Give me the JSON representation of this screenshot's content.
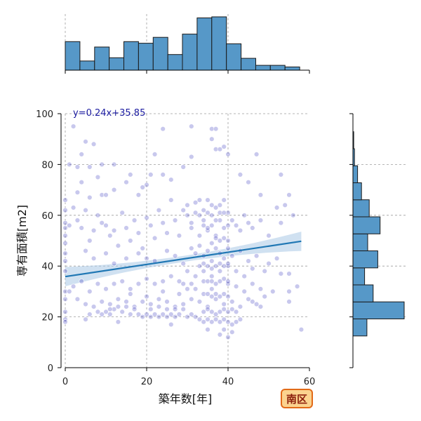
{
  "chart_data": {
    "type": "scatter",
    "xlabel": "築年数[年]",
    "ylabel": "専有面積[m2]",
    "xlim": [
      0,
      60
    ],
    "ylim": [
      0,
      100
    ],
    "xticks": [
      0,
      20,
      40,
      60
    ],
    "yticks": [
      0,
      20,
      40,
      60,
      80,
      100
    ],
    "grid": true,
    "regression": {
      "label": "y=0.24x+35.85",
      "slope": 0.24,
      "intercept": 35.85,
      "x_range": [
        0,
        58
      ],
      "line_color": "#1f77b4",
      "band_color": "#a9c8e6",
      "label_color": "#1a1aa0"
    },
    "point_color": "#2c2cb8",
    "marginal_x_hist": {
      "bin_edges": [
        0,
        3.6,
        7.2,
        10.8,
        14.4,
        18,
        21.6,
        25.2,
        28.8,
        32.4,
        36,
        39.6,
        43.2,
        46.8,
        50.4,
        54,
        57.6
      ],
      "counts": [
        53,
        17,
        43,
        23,
        53,
        50,
        61,
        29,
        67,
        97,
        99,
        49,
        22,
        9,
        9,
        6
      ]
    },
    "marginal_y_hist": {
      "bin_edges": [
        12.5,
        19.2,
        25.9,
        32.6,
        39.3,
        46,
        52.7,
        59.4,
        66.1,
        72.8,
        79.5,
        86.2,
        92.9,
        99.6
      ],
      "counts": [
        18,
        66,
        26,
        15,
        32,
        19,
        35,
        21,
        11,
        6,
        2,
        1,
        0
      ]
    },
    "scatter_points": [
      [
        2,
        95
      ],
      [
        4,
        84
      ],
      [
        5,
        89
      ],
      [
        7,
        88
      ],
      [
        6,
        79
      ],
      [
        3,
        79
      ],
      [
        1,
        80
      ],
      [
        9,
        80
      ],
      [
        8,
        75
      ],
      [
        12,
        80
      ],
      [
        4,
        73
      ],
      [
        3,
        69
      ],
      [
        6,
        67
      ],
      [
        9,
        68
      ],
      [
        10,
        68
      ],
      [
        12,
        70
      ],
      [
        15,
        73
      ],
      [
        16,
        76
      ],
      [
        18,
        68
      ],
      [
        19,
        71
      ],
      [
        20,
        72
      ],
      [
        21,
        76
      ],
      [
        22,
        84
      ],
      [
        24,
        94
      ],
      [
        24,
        76
      ],
      [
        26,
        74
      ],
      [
        29,
        79
      ],
      [
        31,
        83
      ],
      [
        31,
        95
      ],
      [
        36,
        94
      ],
      [
        37,
        94
      ],
      [
        36,
        90
      ],
      [
        37,
        86
      ],
      [
        38,
        86
      ],
      [
        39,
        87
      ],
      [
        40,
        84
      ],
      [
        47,
        84
      ],
      [
        53,
        76
      ],
      [
        55,
        68
      ],
      [
        54,
        64
      ],
      [
        43,
        76
      ],
      [
        45,
        73
      ],
      [
        48,
        68
      ],
      [
        0,
        66
      ],
      [
        0,
        62
      ],
      [
        0,
        57
      ],
      [
        0,
        55
      ],
      [
        0,
        52
      ],
      [
        1,
        56
      ],
      [
        0,
        49
      ],
      [
        0,
        45
      ],
      [
        0,
        42
      ],
      [
        0,
        38
      ],
      [
        0,
        30
      ],
      [
        0,
        27
      ],
      [
        0,
        22
      ],
      [
        0,
        19
      ],
      [
        0,
        18
      ],
      [
        2,
        63
      ],
      [
        3,
        58
      ],
      [
        4,
        55
      ],
      [
        5,
        62
      ],
      [
        6,
        50
      ],
      [
        7,
        54
      ],
      [
        8,
        60
      ],
      [
        9,
        57
      ],
      [
        10,
        56
      ],
      [
        11,
        52
      ],
      [
        12,
        54
      ],
      [
        13,
        48
      ],
      [
        14,
        61
      ],
      [
        15,
        55
      ],
      [
        16,
        50
      ],
      [
        17,
        58
      ],
      [
        18,
        53
      ],
      [
        19,
        47
      ],
      [
        20,
        59
      ],
      [
        21,
        56
      ],
      [
        22,
        51
      ],
      [
        23,
        62
      ],
      [
        24,
        57
      ],
      [
        25,
        53
      ],
      [
        26,
        66
      ],
      [
        27,
        58
      ],
      [
        28,
        52
      ],
      [
        29,
        62
      ],
      [
        30,
        60
      ],
      [
        31,
        55
      ],
      [
        32,
        65
      ],
      [
        33,
        66
      ],
      [
        33,
        60
      ],
      [
        34,
        58
      ],
      [
        34,
        62
      ],
      [
        35,
        54
      ],
      [
        35,
        66
      ],
      [
        36,
        60
      ],
      [
        36,
        56
      ],
      [
        37,
        63
      ],
      [
        37,
        52
      ],
      [
        38,
        58
      ],
      [
        38,
        64
      ],
      [
        39,
        66
      ],
      [
        39,
        55
      ],
      [
        40,
        61
      ],
      [
        41,
        58
      ],
      [
        42,
        56
      ],
      [
        43,
        54
      ],
      [
        44,
        60
      ],
      [
        45,
        57
      ],
      [
        46,
        55
      ],
      [
        48,
        58
      ],
      [
        50,
        52
      ],
      [
        52,
        63
      ],
      [
        53,
        57
      ],
      [
        56,
        60
      ],
      [
        5,
        46
      ],
      [
        7,
        43
      ],
      [
        10,
        45
      ],
      [
        12,
        41
      ],
      [
        15,
        43
      ],
      [
        18,
        45
      ],
      [
        20,
        43
      ],
      [
        22,
        42
      ],
      [
        25,
        46
      ],
      [
        27,
        44
      ],
      [
        29,
        41
      ],
      [
        31,
        47
      ],
      [
        32,
        45
      ],
      [
        33,
        48
      ],
      [
        34,
        44
      ],
      [
        35,
        46
      ],
      [
        36,
        42
      ],
      [
        37,
        47
      ],
      [
        38,
        45
      ],
      [
        39,
        43
      ],
      [
        40,
        47
      ],
      [
        41,
        44
      ],
      [
        43,
        46
      ],
      [
        45,
        42
      ],
      [
        47,
        44
      ],
      [
        50,
        41
      ],
      [
        52,
        43
      ],
      [
        55,
        37
      ],
      [
        53,
        37
      ],
      [
        49,
        38
      ],
      [
        46,
        39
      ],
      [
        44,
        36
      ],
      [
        42,
        38
      ],
      [
        40,
        40
      ],
      [
        38,
        38
      ],
      [
        36,
        36
      ],
      [
        34,
        38
      ],
      [
        32,
        36
      ],
      [
        30,
        38
      ],
      [
        28,
        34
      ],
      [
        26,
        36
      ],
      [
        24,
        34
      ],
      [
        22,
        33
      ],
      [
        20,
        35
      ],
      [
        18,
        33
      ],
      [
        16,
        31
      ],
      [
        14,
        34
      ],
      [
        12,
        33
      ],
      [
        10,
        31
      ],
      [
        8,
        33
      ],
      [
        6,
        30
      ],
      [
        4,
        34
      ],
      [
        2,
        32
      ],
      [
        1,
        30
      ],
      [
        3,
        27
      ],
      [
        5,
        25
      ],
      [
        7,
        24
      ],
      [
        9,
        26
      ],
      [
        11,
        25
      ],
      [
        13,
        27
      ],
      [
        15,
        26
      ],
      [
        17,
        24
      ],
      [
        19,
        26
      ],
      [
        21,
        25
      ],
      [
        23,
        27
      ],
      [
        25,
        26
      ],
      [
        27,
        24
      ],
      [
        29,
        25
      ],
      [
        31,
        27
      ],
      [
        33,
        26
      ],
      [
        35,
        24
      ],
      [
        37,
        27
      ],
      [
        39,
        25
      ],
      [
        41,
        26
      ],
      [
        43,
        24
      ],
      [
        45,
        27
      ],
      [
        47,
        25
      ],
      [
        49,
        28
      ],
      [
        51,
        30
      ],
      [
        55,
        30
      ],
      [
        57,
        32
      ],
      [
        48,
        31
      ],
      [
        46,
        33
      ],
      [
        44,
        30
      ],
      [
        42,
        32
      ],
      [
        40,
        33
      ],
      [
        36,
        31
      ],
      [
        32,
        31
      ],
      [
        28,
        29
      ],
      [
        24,
        30
      ],
      [
        20,
        28
      ],
      [
        16,
        29
      ],
      [
        8,
        22
      ],
      [
        9,
        21
      ],
      [
        10,
        22
      ],
      [
        11,
        21
      ],
      [
        12,
        23
      ],
      [
        14,
        22
      ],
      [
        16,
        21
      ],
      [
        18,
        21
      ],
      [
        19,
        20
      ],
      [
        20,
        21
      ],
      [
        21,
        20
      ],
      [
        22,
        21
      ],
      [
        23,
        20
      ],
      [
        24,
        21
      ],
      [
        25,
        20
      ],
      [
        26,
        21
      ],
      [
        27,
        20
      ],
      [
        28,
        21
      ],
      [
        30,
        20
      ],
      [
        31,
        21
      ],
      [
        32,
        20
      ],
      [
        33,
        19
      ],
      [
        34,
        18
      ],
      [
        35,
        19
      ],
      [
        36,
        18
      ],
      [
        37,
        19
      ],
      [
        38,
        18
      ],
      [
        39,
        19
      ],
      [
        40,
        18
      ],
      [
        41,
        17
      ],
      [
        42,
        18
      ],
      [
        43,
        19
      ],
      [
        34,
        22
      ],
      [
        35,
        23
      ],
      [
        36,
        22
      ],
      [
        37,
        21
      ],
      [
        38,
        22
      ],
      [
        39,
        23
      ],
      [
        40,
        22
      ],
      [
        41,
        23
      ],
      [
        42,
        22
      ],
      [
        29,
        23
      ],
      [
        27,
        23
      ],
      [
        25,
        23
      ],
      [
        23,
        24
      ],
      [
        21,
        23
      ],
      [
        17,
        23
      ],
      [
        15,
        24
      ],
      [
        13,
        24
      ],
      [
        11,
        23
      ],
      [
        6,
        21
      ],
      [
        5,
        19
      ],
      [
        13,
        18
      ],
      [
        26,
        17
      ],
      [
        35,
        15
      ],
      [
        38,
        13
      ],
      [
        39,
        15
      ],
      [
        40,
        12
      ],
      [
        41,
        14
      ],
      [
        58,
        15
      ],
      [
        48,
        24
      ],
      [
        55,
        26
      ],
      [
        46,
        26
      ],
      [
        35,
        55
      ],
      [
        36,
        64
      ],
      [
        37,
        58
      ],
      [
        34,
        56
      ],
      [
        33,
        52
      ],
      [
        32,
        61
      ],
      [
        30,
        64
      ],
      [
        31,
        57
      ],
      [
        35,
        61
      ],
      [
        38,
        61
      ],
      [
        39,
        61
      ],
      [
        40,
        56
      ],
      [
        36,
        49
      ],
      [
        37,
        51
      ],
      [
        38,
        50
      ],
      [
        39,
        51
      ],
      [
        40,
        50
      ],
      [
        33,
        40
      ],
      [
        34,
        41
      ],
      [
        35,
        40
      ],
      [
        36,
        39
      ],
      [
        37,
        40
      ],
      [
        38,
        41
      ],
      [
        39,
        40
      ],
      [
        40,
        41
      ],
      [
        34,
        34
      ],
      [
        35,
        34
      ],
      [
        36,
        34
      ],
      [
        37,
        33
      ],
      [
        38,
        34
      ],
      [
        39,
        35
      ],
      [
        40,
        34
      ],
      [
        34,
        29
      ],
      [
        35,
        29
      ],
      [
        36,
        28
      ],
      [
        37,
        29
      ],
      [
        38,
        28
      ],
      [
        39,
        29
      ],
      [
        40,
        28
      ],
      [
        30,
        31
      ],
      [
        29,
        33
      ],
      [
        31,
        33
      ]
    ]
  },
  "badge": {
    "label": "南区",
    "fill": "#fbd38f",
    "border": "#e26a18",
    "text_color": "#8b1e0c"
  }
}
